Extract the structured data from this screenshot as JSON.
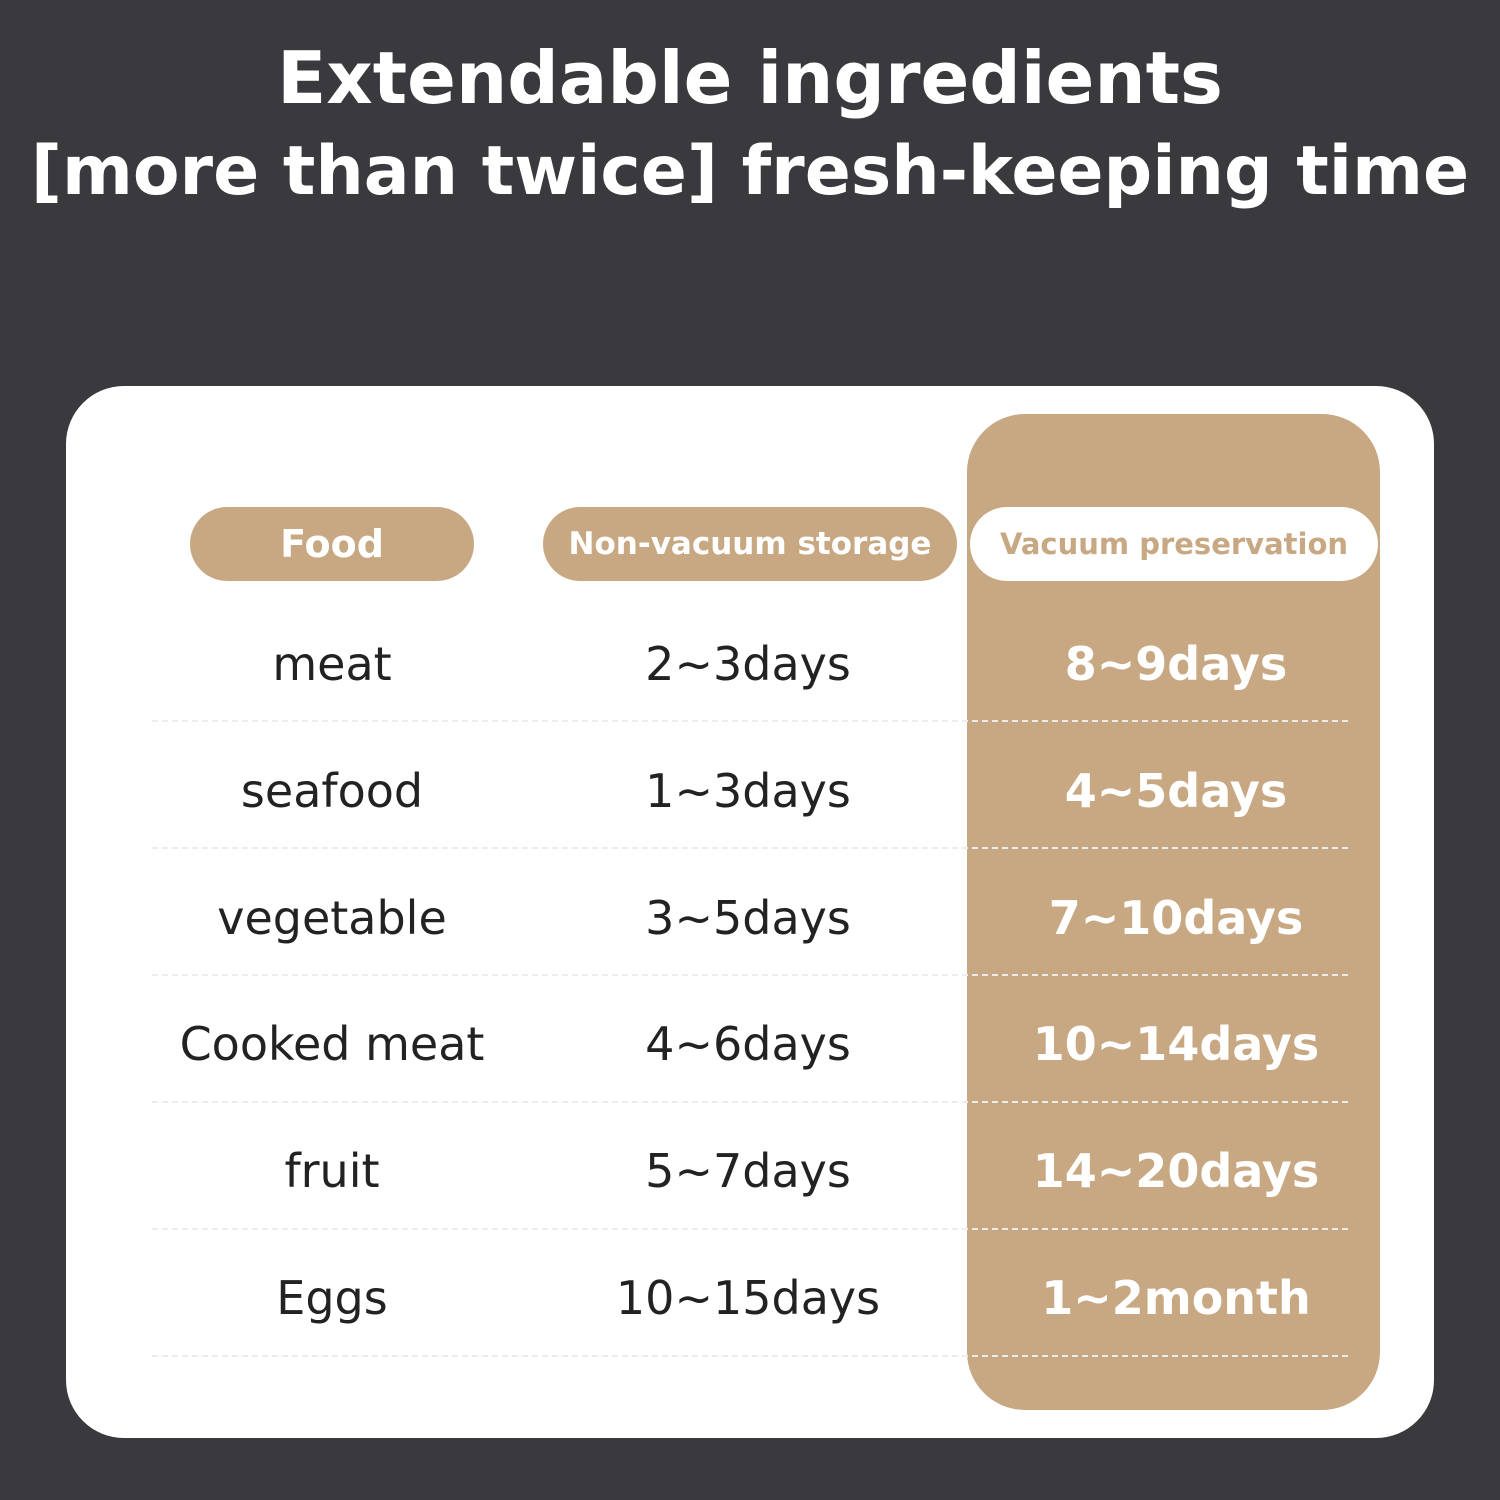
{
  "headline": {
    "line1": "Extendable ingredients",
    "line2": "[more than twice] fresh-keeping time"
  },
  "table": {
    "headers": {
      "food": "Food",
      "non_vacuum": "Non-vacuum storage",
      "vacuum": "Vacuum preservation"
    },
    "rows": [
      {
        "food": "meat",
        "non_vacuum": "2~3days",
        "vacuum": "8~9days"
      },
      {
        "food": "seafood",
        "non_vacuum": "1~3days",
        "vacuum": "4~5days"
      },
      {
        "food": "vegetable",
        "non_vacuum": "3~5days",
        "vacuum": "7~10days"
      },
      {
        "food": "Cooked meat",
        "non_vacuum": "4~6days",
        "vacuum": "10~14days"
      },
      {
        "food": "fruit",
        "non_vacuum": "5~7days",
        "vacuum": "14~20days"
      },
      {
        "food": "Eggs",
        "non_vacuum": "10~15days",
        "vacuum": "1~2month"
      }
    ]
  },
  "colors": {
    "background": "#3a393e",
    "accent": "#c8a882",
    "card": "#ffffff"
  }
}
